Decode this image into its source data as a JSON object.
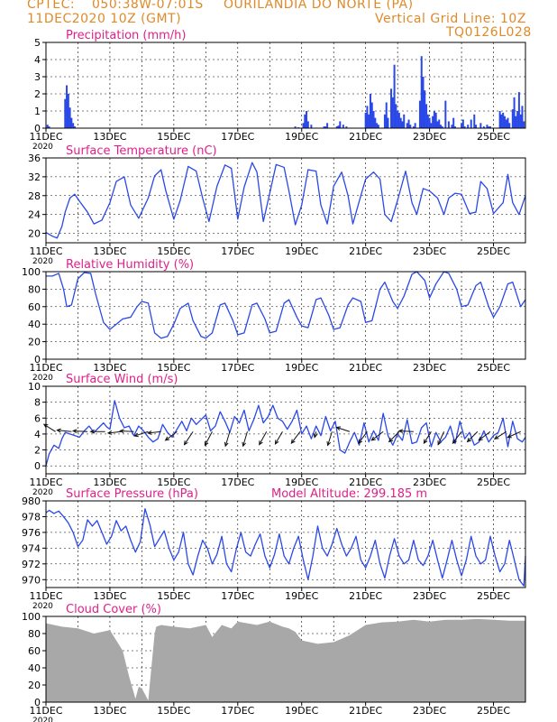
{
  "header": {
    "source": "CPTEC:",
    "coords": "050:38W-07:01S",
    "location": "OURILANDIA DO NORTE (PA)",
    "date": "11DEC2020 10Z (GMT)",
    "grid_note": "Vertical Grid Line: 10Z",
    "model_id": "TQ0126L028"
  },
  "colors": {
    "header": "#e08a28",
    "title": "#e0208a",
    "line": "#2a48e8",
    "bar": "#2a48e8",
    "cloud": "#a8a8a8",
    "wind_arrow": "#111111"
  },
  "chart_data": [
    {
      "type": "bar",
      "title": "Precipitation (mm/h)",
      "x_ticks": [
        "11DEC",
        "13DEC",
        "15DEC",
        "17DEC",
        "19DEC",
        "21DEC",
        "23DEC",
        "25DEC"
      ],
      "year_label": "2020",
      "ylim": [
        0,
        5
      ],
      "y_ticks": [
        0,
        1,
        2,
        3,
        4,
        5
      ],
      "x_days": [
        0.05,
        0.1,
        0.6,
        0.65,
        0.7,
        0.75,
        0.8,
        0.85,
        0.9,
        7.8,
        7.9,
        8.05,
        8.1,
        8.15,
        8.2,
        8.3,
        8.7,
        8.75,
        8.8,
        9.1,
        9.15,
        9.2,
        9.3,
        9.4,
        10.0,
        10.05,
        10.1,
        10.15,
        10.2,
        10.25,
        10.3,
        10.35,
        10.4,
        10.6,
        10.65,
        10.7,
        10.8,
        10.85,
        10.9,
        10.95,
        11.0,
        11.05,
        11.1,
        11.15,
        11.2,
        11.3,
        11.35,
        11.4,
        11.5,
        11.55,
        11.7,
        11.75,
        11.8,
        11.85,
        11.9,
        11.95,
        12.0,
        12.05,
        12.1,
        12.15,
        12.2,
        12.25,
        12.3,
        12.35,
        12.4,
        12.5,
        12.6,
        12.7,
        12.75,
        12.8,
        13.0,
        13.05,
        13.1,
        13.2,
        13.3,
        13.4,
        13.45,
        13.6,
        13.7,
        13.8,
        13.85,
        13.9,
        14.2,
        14.25,
        14.3,
        14.35,
        14.4,
        14.45,
        14.5,
        14.6,
        14.65,
        14.7,
        14.75,
        14.8,
        14.85,
        14.9,
        14.95
      ],
      "values": [
        0.2,
        0.1,
        1.7,
        2.5,
        2.0,
        1.2,
        0.6,
        0.3,
        0.1,
        0.1,
        0.05,
        0.3,
        0.8,
        1.0,
        0.4,
        0.2,
        0.1,
        0.1,
        0.3,
        0.1,
        0.15,
        0.4,
        0.2,
        0.1,
        0.9,
        1.3,
        0.8,
        2.0,
        1.5,
        1.0,
        0.6,
        0.3,
        0.2,
        0.8,
        1.5,
        0.6,
        2.3,
        1.8,
        3.7,
        1.4,
        1.0,
        0.9,
        0.6,
        0.4,
        0.8,
        0.3,
        0.5,
        0.2,
        0.1,
        0.3,
        1.6,
        4.2,
        3.0,
        2.2,
        1.4,
        0.8,
        0.6,
        0.3,
        0.7,
        1.0,
        0.9,
        0.4,
        0.5,
        0.2,
        0.1,
        1.6,
        0.4,
        0.2,
        0.6,
        0.1,
        0.3,
        0.5,
        0.1,
        0.2,
        0.5,
        0.8,
        0.2,
        0.3,
        0.1,
        0.2,
        0.1,
        0.1,
        1.0,
        0.8,
        0.9,
        0.7,
        0.5,
        0.6,
        0.3,
        1.1,
        1.8,
        0.7,
        1.0,
        2.1,
        0.8,
        1.3,
        0.4
      ],
      "xlim": [
        0,
        15
      ]
    },
    {
      "type": "line",
      "title": "Surface Temperature (nC)",
      "x_ticks": [
        "11DEC",
        "13DEC",
        "15DEC",
        "17DEC",
        "19DEC",
        "21DEC",
        "23DEC",
        "25DEC"
      ],
      "year_label": "2020",
      "ylim": [
        18,
        36
      ],
      "y_ticks": [
        20,
        24,
        28,
        32,
        36
      ],
      "x_days": [
        0,
        0.2,
        0.35,
        0.5,
        0.6,
        0.75,
        0.9,
        1.05,
        1.3,
        1.5,
        1.75,
        2.0,
        2.2,
        2.45,
        2.65,
        2.9,
        3.2,
        3.4,
        3.6,
        3.75,
        4.0,
        4.2,
        4.45,
        4.7,
        4.9,
        5.1,
        5.35,
        5.6,
        5.8,
        6.0,
        6.2,
        6.45,
        6.6,
        6.8,
        7.0,
        7.2,
        7.45,
        7.6,
        7.8,
        8.0,
        8.2,
        8.45,
        8.6,
        8.8,
        9.0,
        9.25,
        9.45,
        9.6,
        9.85,
        10.0,
        10.25,
        10.45,
        10.6,
        10.8,
        11.0,
        11.25,
        11.45,
        11.6,
        11.8,
        12.0,
        12.25,
        12.45,
        12.6,
        12.8,
        13.0,
        13.25,
        13.45,
        13.6,
        13.8,
        14.0,
        14.3,
        14.45,
        14.6,
        14.8,
        15.0
      ],
      "values": [
        20.2,
        19.4,
        19.0,
        21.5,
        24.5,
        27.5,
        28.3,
        26.8,
        24.5,
        22.0,
        22.8,
        26.5,
        31.0,
        32.0,
        26.0,
        23.2,
        27.5,
        32.2,
        33.5,
        29.0,
        23.0,
        27.0,
        34.2,
        33.2,
        27.5,
        22.5,
        30.0,
        34.5,
        33.8,
        23.0,
        29.8,
        35.0,
        33.0,
        22.5,
        28.5,
        34.6,
        34.0,
        29.0,
        21.8,
        26.0,
        33.5,
        33.2,
        26.0,
        22.0,
        30.0,
        33.0,
        28.0,
        22.0,
        28.0,
        31.5,
        33.0,
        31.5,
        24.0,
        22.5,
        27.0,
        33.2,
        26.5,
        24.0,
        29.5,
        29.0,
        27.5,
        24.0,
        27.5,
        28.5,
        28.3,
        24.2,
        24.5,
        31.0,
        29.5,
        24.2,
        26.5,
        32.5,
        26.5,
        24.0,
        28.0
      ],
      "xlim": [
        0,
        15
      ]
    },
    {
      "type": "line",
      "title": "Relative Humidity (%)",
      "x_ticks": [
        "11DEC",
        "13DEC",
        "15DEC",
        "17DEC",
        "19DEC",
        "21DEC",
        "23DEC",
        "25DEC"
      ],
      "year_label": "2020",
      "ylim": [
        0,
        100
      ],
      "y_ticks": [
        0,
        20,
        40,
        60,
        80,
        100
      ],
      "x_days": [
        0,
        0.2,
        0.4,
        0.55,
        0.65,
        0.8,
        1.0,
        1.2,
        1.4,
        1.55,
        1.8,
        2.0,
        2.2,
        2.4,
        2.65,
        2.85,
        3.0,
        3.2,
        3.4,
        3.6,
        3.8,
        4.0,
        4.2,
        4.45,
        4.6,
        4.85,
        5.0,
        5.2,
        5.45,
        5.6,
        5.85,
        6.0,
        6.2,
        6.45,
        6.6,
        6.85,
        7.0,
        7.2,
        7.45,
        7.6,
        7.85,
        8.0,
        8.2,
        8.45,
        8.6,
        8.85,
        9.0,
        9.2,
        9.45,
        9.6,
        9.85,
        10.0,
        10.2,
        10.45,
        10.6,
        10.85,
        11.0,
        11.2,
        11.45,
        11.6,
        11.85,
        12.0,
        12.2,
        12.45,
        12.6,
        12.85,
        13.0,
        13.2,
        13.45,
        13.6,
        13.85,
        14.0,
        14.2,
        14.45,
        14.6,
        14.85,
        15.0
      ],
      "values": [
        95,
        95,
        98,
        80,
        60,
        62,
        92,
        99,
        98,
        75,
        42,
        34,
        40,
        46,
        48,
        60,
        66,
        64,
        30,
        24,
        26,
        40,
        58,
        64,
        44,
        26,
        24,
        30,
        62,
        64,
        44,
        28,
        30,
        62,
        64,
        46,
        30,
        32,
        64,
        68,
        48,
        38,
        36,
        68,
        70,
        50,
        34,
        36,
        62,
        70,
        66,
        42,
        44,
        80,
        88,
        66,
        58,
        72,
        97,
        100,
        90,
        70,
        86,
        100,
        98,
        80,
        60,
        62,
        84,
        88,
        60,
        48,
        60,
        86,
        88,
        60,
        68
      ],
      "xlim": [
        0,
        15
      ]
    },
    {
      "type": "line",
      "title": "Surface Wind (m/s)",
      "x_ticks": [
        "11DEC",
        "13DEC",
        "15DEC",
        "17DEC",
        "19DEC",
        "21DEC",
        "23DEC",
        "25DEC"
      ],
      "year_label": "2020",
      "ylim": [
        -1,
        10
      ],
      "y_ticks": [
        0,
        2,
        4,
        6,
        8,
        10
      ],
      "x_days": [
        0,
        0.1,
        0.25,
        0.4,
        0.5,
        0.6,
        0.75,
        0.9,
        1.05,
        1.2,
        1.35,
        1.5,
        1.65,
        1.8,
        1.9,
        2.0,
        2.15,
        2.3,
        2.45,
        2.6,
        2.75,
        2.9,
        3.05,
        3.2,
        3.35,
        3.5,
        3.65,
        3.8,
        3.95,
        4.1,
        4.25,
        4.4,
        4.55,
        4.7,
        4.85,
        5.0,
        5.15,
        5.3,
        5.45,
        5.6,
        5.75,
        5.9,
        6.05,
        6.2,
        6.35,
        6.5,
        6.65,
        6.8,
        6.95,
        7.1,
        7.25,
        7.4,
        7.55,
        7.7,
        7.85,
        8.0,
        8.15,
        8.3,
        8.45,
        8.6,
        8.75,
        8.9,
        9.05,
        9.2,
        9.35,
        9.5,
        9.65,
        9.8,
        9.95,
        10.1,
        10.25,
        10.4,
        10.55,
        10.7,
        10.85,
        11.0,
        11.15,
        11.3,
        11.45,
        11.6,
        11.75,
        11.9,
        12.05,
        12.2,
        12.35,
        12.5,
        12.65,
        12.8,
        12.95,
        13.1,
        13.25,
        13.4,
        13.55,
        13.7,
        13.85,
        14.0,
        14.15,
        14.3,
        14.45,
        14.6,
        14.75,
        14.9,
        15.0
      ],
      "values": [
        0,
        1.5,
        2.6,
        2.2,
        3.4,
        4.2,
        4.0,
        3.8,
        3.6,
        4.4,
        5.0,
        4.2,
        4.8,
        5.4,
        4.9,
        4.6,
        8.2,
        6.0,
        4.8,
        5.0,
        3.8,
        5.0,
        4.4,
        3.6,
        3.0,
        3.4,
        5.2,
        4.2,
        3.6,
        4.6,
        5.6,
        4.4,
        6.0,
        5.2,
        5.8,
        6.4,
        4.4,
        5.0,
        6.8,
        5.6,
        4.2,
        6.2,
        5.4,
        7.0,
        4.4,
        5.8,
        7.6,
        5.4,
        6.2,
        7.6,
        6.0,
        5.6,
        4.6,
        5.6,
        7.0,
        4.0,
        5.0,
        3.4,
        5.0,
        3.8,
        6.2,
        4.4,
        5.6,
        2.0,
        1.6,
        3.0,
        4.2,
        2.6,
        5.4,
        3.0,
        4.4,
        3.2,
        6.6,
        3.8,
        2.6,
        4.0,
        3.2,
        5.8,
        2.8,
        3.0,
        4.8,
        5.4,
        2.4,
        4.2,
        3.0,
        3.6,
        5.0,
        2.8,
        5.6,
        3.4,
        4.2,
        2.6,
        3.0,
        4.4,
        3.0,
        3.8,
        4.2,
        6.0,
        2.4,
        5.6,
        3.4,
        3.0,
        3.6
      ],
      "arrows": [
        {
          "day": 0.3,
          "u": -0.8,
          "v": 0.5
        },
        {
          "day": 0.8,
          "u": -1,
          "v": 0.1
        },
        {
          "day": 1.3,
          "u": -1,
          "v": 0.05
        },
        {
          "day": 1.85,
          "u": -1,
          "v": 0
        },
        {
          "day": 2.35,
          "u": -0.9,
          "v": -0.1
        },
        {
          "day": 2.75,
          "u": -0.95,
          "v": 0.05
        },
        {
          "day": 3.2,
          "u": -0.95,
          "v": -0.3
        },
        {
          "day": 3.6,
          "u": -0.9,
          "v": -0.1
        },
        {
          "day": 4.1,
          "u": -0.8,
          "v": -0.6
        },
        {
          "day": 4.6,
          "u": -0.6,
          "v": -0.9
        },
        {
          "day": 5.2,
          "u": -0.5,
          "v": -0.95
        },
        {
          "day": 5.75,
          "u": -0.3,
          "v": -1
        },
        {
          "day": 6.3,
          "u": -0.3,
          "v": -1
        },
        {
          "day": 6.9,
          "u": -0.5,
          "v": -0.9
        },
        {
          "day": 7.4,
          "u": -0.5,
          "v": -0.85
        },
        {
          "day": 7.95,
          "u": -0.6,
          "v": -0.8
        },
        {
          "day": 8.45,
          "u": -0.1,
          "v": -0.4
        },
        {
          "day": 8.95,
          "u": -0.3,
          "v": -0.95
        },
        {
          "day": 9.5,
          "u": -0.9,
          "v": 0.3
        },
        {
          "day": 10.05,
          "u": -0.6,
          "v": -0.8
        },
        {
          "day": 10.55,
          "u": -0.8,
          "v": -0.6
        },
        {
          "day": 11.05,
          "u": -0.7,
          "v": -0.7
        },
        {
          "day": 11.5,
          "u": -1,
          "v": 0.05
        },
        {
          "day": 12.05,
          "u": -0.5,
          "v": -0.8
        },
        {
          "day": 12.45,
          "u": -0.4,
          "v": -0.9
        },
        {
          "day": 13.0,
          "u": -0.6,
          "v": -0.8
        },
        {
          "day": 13.5,
          "u": -0.7,
          "v": -0.7
        },
        {
          "day": 13.9,
          "u": -0.8,
          "v": -0.6
        },
        {
          "day": 14.4,
          "u": -0.8,
          "v": -0.5
        },
        {
          "day": 14.85,
          "u": -0.9,
          "v": -0.4
        }
      ],
      "xlim": [
        0,
        15
      ]
    },
    {
      "type": "line",
      "title": "Surface Pressure (hPa)",
      "annotation": "Model Altitude: 299.185 m",
      "x_ticks": [
        "11DEC",
        "13DEC",
        "15DEC",
        "17DEC",
        "19DEC",
        "21DEC",
        "23DEC",
        "25DEC"
      ],
      "year_label": "2020",
      "ylim": [
        969,
        980
      ],
      "y_ticks": [
        970,
        972,
        974,
        976,
        978,
        980
      ],
      "x_days": [
        0,
        0.1,
        0.25,
        0.4,
        0.55,
        0.7,
        0.85,
        1.0,
        1.15,
        1.3,
        1.45,
        1.6,
        1.75,
        1.9,
        2.05,
        2.2,
        2.35,
        2.5,
        2.65,
        2.8,
        2.95,
        3.1,
        3.25,
        3.4,
        3.55,
        3.7,
        3.85,
        4.0,
        4.15,
        4.3,
        4.45,
        4.6,
        4.75,
        4.9,
        5.05,
        5.2,
        5.35,
        5.5,
        5.65,
        5.8,
        5.95,
        6.1,
        6.25,
        6.4,
        6.55,
        6.7,
        6.85,
        7.0,
        7.15,
        7.3,
        7.45,
        7.6,
        7.75,
        7.9,
        8.05,
        8.2,
        8.35,
        8.5,
        8.65,
        8.8,
        8.95,
        9.1,
        9.25,
        9.4,
        9.55,
        9.7,
        9.85,
        10.0,
        10.15,
        10.3,
        10.45,
        10.6,
        10.75,
        10.9,
        11.05,
        11.2,
        11.35,
        11.5,
        11.65,
        11.8,
        11.95,
        12.1,
        12.25,
        12.4,
        12.55,
        12.7,
        12.85,
        13.0,
        13.15,
        13.3,
        13.45,
        13.6,
        13.75,
        13.9,
        14.05,
        14.2,
        14.35,
        14.5,
        14.65,
        14.8,
        14.95,
        15.0
      ],
      "values": [
        978.5,
        978.8,
        978.4,
        978.7,
        978.0,
        977.2,
        976.0,
        974.2,
        975.0,
        977.6,
        976.8,
        977.5,
        976.0,
        974.5,
        975.5,
        977.5,
        976.2,
        976.8,
        975.0,
        973.5,
        974.8,
        979.0,
        977.0,
        974.2,
        975.2,
        976.2,
        974.0,
        972.5,
        973.5,
        976.0,
        972.0,
        970.6,
        973.0,
        975.0,
        974.0,
        972.0,
        973.2,
        975.5,
        972.0,
        971.0,
        973.8,
        976.0,
        973.5,
        973.0,
        974.5,
        975.8,
        973.0,
        971.5,
        973.2,
        975.8,
        973.0,
        972.0,
        974.0,
        975.5,
        972.5,
        970.0,
        973.0,
        976.8,
        974.0,
        973.0,
        974.5,
        976.5,
        974.5,
        973.0,
        974.0,
        975.5,
        972.5,
        971.5,
        973.0,
        975.0,
        972.0,
        970.2,
        973.0,
        975.2,
        973.0,
        972.0,
        972.5,
        975.0,
        972.5,
        971.8,
        973.0,
        975.0,
        972.5,
        970.2,
        972.5,
        975.0,
        972.5,
        970.5,
        972.5,
        975.5,
        973.0,
        972.0,
        972.5,
        975.5,
        973.0,
        971.0,
        972.0,
        975.0,
        972.5,
        970.0,
        969.2,
        973.0
      ],
      "xlim": [
        0,
        15
      ]
    },
    {
      "type": "bar",
      "title": "Cloud Cover (%)",
      "x_ticks": [
        "11DEC",
        "13DEC",
        "15DEC",
        "17DEC",
        "19DEC",
        "21DEC",
        "23DEC",
        "25DEC"
      ],
      "year_label": "2020",
      "ylim": [
        0,
        100
      ],
      "y_ticks": [
        0,
        20,
        40,
        60,
        80,
        100
      ],
      "x_days": [
        0,
        0.5,
        1.0,
        1.5,
        2.0,
        2.4,
        2.6,
        2.8,
        2.9,
        3.0,
        3.2,
        3.4,
        3.45,
        3.6,
        4.0,
        4.5,
        5.0,
        5.2,
        5.5,
        5.8,
        6.0,
        6.3,
        6.6,
        7.0,
        7.4,
        7.6,
        7.8,
        8.0,
        8.5,
        9.0,
        9.5,
        10.0,
        10.5,
        11.0,
        11.5,
        12.0,
        12.5,
        13.0,
        13.5,
        14.0,
        14.5,
        15.0
      ],
      "values": [
        92,
        88,
        86,
        80,
        84,
        60,
        30,
        4,
        18,
        16,
        2,
        80,
        88,
        90,
        88,
        86,
        90,
        76,
        90,
        86,
        94,
        92,
        90,
        94,
        88,
        86,
        82,
        72,
        68,
        70,
        78,
        90,
        93,
        94,
        96,
        94,
        96,
        96,
        97,
        96,
        95,
        95
      ],
      "xlim": [
        0,
        15
      ]
    }
  ]
}
